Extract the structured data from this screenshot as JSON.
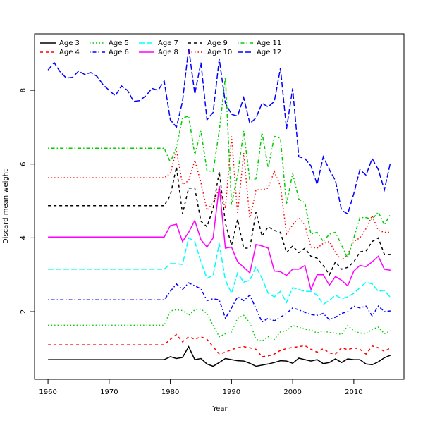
{
  "chart_data": {
    "type": "line",
    "xlabel": "Year",
    "ylabel": "Discard mean weight",
    "x": [
      1960,
      1961,
      1962,
      1963,
      1964,
      1965,
      1966,
      1967,
      1968,
      1969,
      1970,
      1971,
      1972,
      1973,
      1974,
      1975,
      1976,
      1977,
      1978,
      1979,
      1980,
      1981,
      1982,
      1983,
      1984,
      1985,
      1986,
      1987,
      1988,
      1989,
      1990,
      1991,
      1992,
      1993,
      1994,
      1995,
      1996,
      1997,
      1998,
      1999,
      2000,
      2001,
      2002,
      2003,
      2004,
      2005,
      2006,
      2007,
      2008,
      2009,
      2010,
      2011,
      2012,
      2013,
      2014,
      2015,
      2016
    ],
    "xlim": [
      1957.8,
      2018.2
    ],
    "xticks": [
      1960,
      1970,
      1980,
      1990,
      2000,
      2010
    ],
    "ylim": [
      0.166,
      9.53
    ],
    "yticks": [
      2,
      4,
      6,
      8
    ],
    "legend": "top-left",
    "series": [
      {
        "name": "Age 3",
        "color": "#000000",
        "dash": "solid",
        "values": [
          0.7,
          0.7,
          0.7,
          0.7,
          0.7,
          0.7,
          0.7,
          0.7,
          0.7,
          0.7,
          0.7,
          0.7,
          0.7,
          0.7,
          0.7,
          0.7,
          0.7,
          0.7,
          0.7,
          0.7,
          0.78,
          0.73,
          0.76,
          1.05,
          0.7,
          0.73,
          0.58,
          0.52,
          0.62,
          0.73,
          0.7,
          0.67,
          0.66,
          0.6,
          0.52,
          0.55,
          0.58,
          0.62,
          0.67,
          0.66,
          0.6,
          0.74,
          0.7,
          0.66,
          0.7,
          0.59,
          0.62,
          0.72,
          0.62,
          0.72,
          0.7,
          0.7,
          0.58,
          0.56,
          0.64,
          0.75,
          0.82
        ]
      },
      {
        "name": "Age 4",
        "color": "#ff0000",
        "dash": "dashed",
        "values": [
          1.1,
          1.1,
          1.1,
          1.1,
          1.1,
          1.1,
          1.1,
          1.1,
          1.1,
          1.1,
          1.1,
          1.1,
          1.1,
          1.1,
          1.1,
          1.1,
          1.1,
          1.1,
          1.1,
          1.1,
          1.25,
          1.38,
          1.18,
          1.32,
          1.25,
          1.32,
          1.25,
          1.05,
          0.85,
          0.9,
          0.97,
          1.02,
          1.05,
          1.02,
          0.98,
          0.78,
          0.8,
          0.85,
          0.95,
          1.0,
          1.03,
          1.05,
          1.08,
          0.98,
          0.9,
          1.0,
          0.88,
          0.85,
          1.02,
          0.97,
          1.02,
          0.98,
          0.85,
          1.07,
          1.02,
          0.92,
          1.02
        ]
      },
      {
        "name": "Age 5",
        "color": "#00cd00",
        "dash": "dotted",
        "values": [
          1.63,
          1.63,
          1.63,
          1.63,
          1.63,
          1.63,
          1.63,
          1.63,
          1.63,
          1.63,
          1.63,
          1.63,
          1.63,
          1.63,
          1.63,
          1.63,
          1.63,
          1.63,
          1.63,
          1.63,
          2.02,
          2.05,
          2.03,
          1.9,
          2.05,
          2.07,
          1.95,
          1.63,
          1.32,
          1.4,
          1.45,
          1.82,
          1.9,
          1.7,
          1.25,
          1.2,
          1.32,
          1.25,
          1.45,
          1.48,
          1.62,
          1.58,
          1.52,
          1.5,
          1.42,
          1.48,
          1.43,
          1.42,
          1.38,
          1.62,
          1.48,
          1.42,
          1.4,
          1.52,
          1.58,
          1.4,
          1.48
        ]
      },
      {
        "name": "Age 6",
        "color": "#0000ff",
        "dash": "dotdash",
        "values": [
          2.32,
          2.32,
          2.32,
          2.32,
          2.32,
          2.32,
          2.32,
          2.32,
          2.32,
          2.32,
          2.32,
          2.32,
          2.32,
          2.32,
          2.32,
          2.32,
          2.32,
          2.32,
          2.32,
          2.32,
          2.55,
          2.75,
          2.6,
          2.78,
          2.7,
          2.62,
          2.3,
          2.35,
          2.32,
          1.82,
          2.1,
          2.4,
          2.3,
          2.45,
          2.08,
          1.72,
          1.82,
          1.75,
          1.85,
          1.95,
          2.1,
          2.05,
          1.98,
          1.92,
          1.9,
          1.95,
          1.78,
          1.85,
          1.95,
          2.0,
          2.15,
          2.1,
          2.15,
          1.88,
          2.15,
          2.0,
          2.02
        ]
      },
      {
        "name": "Age 7",
        "color": "#00ffff",
        "dash": "longdash",
        "values": [
          3.15,
          3.15,
          3.15,
          3.15,
          3.15,
          3.15,
          3.15,
          3.15,
          3.15,
          3.15,
          3.15,
          3.15,
          3.15,
          3.15,
          3.15,
          3.15,
          3.15,
          3.15,
          3.15,
          3.15,
          3.3,
          3.3,
          3.28,
          4.0,
          3.9,
          3.35,
          2.9,
          2.98,
          3.85,
          2.85,
          2.5,
          3.05,
          2.8,
          2.85,
          3.22,
          2.9,
          2.5,
          2.4,
          2.55,
          2.25,
          2.65,
          2.6,
          2.55,
          2.55,
          2.45,
          2.2,
          2.3,
          2.45,
          2.35,
          2.4,
          2.5,
          2.65,
          2.8,
          2.75,
          2.55,
          2.58,
          2.38
        ]
      },
      {
        "name": "Age 8",
        "color": "#ff00ff",
        "dash": "solid",
        "values": [
          4.02,
          4.02,
          4.02,
          4.02,
          4.02,
          4.02,
          4.02,
          4.02,
          4.02,
          4.02,
          4.02,
          4.02,
          4.02,
          4.02,
          4.02,
          4.02,
          4.02,
          4.02,
          4.02,
          4.02,
          4.33,
          4.37,
          3.9,
          4.15,
          4.47,
          3.95,
          3.75,
          4.0,
          5.4,
          3.72,
          3.75,
          3.35,
          3.2,
          3.05,
          3.82,
          3.78,
          3.72,
          3.1,
          3.08,
          2.98,
          3.15,
          3.15,
          3.25,
          2.6,
          3.0,
          3.0,
          2.72,
          2.95,
          2.85,
          2.7,
          3.1,
          3.25,
          3.22,
          3.35,
          3.5,
          3.15,
          3.12
        ]
      },
      {
        "name": "Age 9",
        "color": "#000000",
        "dash": "dashed",
        "values": [
          4.87,
          4.87,
          4.87,
          4.87,
          4.87,
          4.87,
          4.87,
          4.87,
          4.87,
          4.87,
          4.87,
          4.87,
          4.87,
          4.87,
          4.87,
          4.87,
          4.87,
          4.87,
          4.87,
          4.87,
          5.15,
          5.92,
          4.65,
          5.35,
          5.35,
          4.45,
          4.3,
          4.8,
          5.8,
          4.4,
          3.8,
          4.5,
          3.72,
          3.72,
          4.7,
          4.05,
          4.3,
          4.2,
          4.15,
          3.6,
          3.78,
          3.6,
          3.72,
          3.5,
          3.45,
          3.25,
          3.0,
          3.35,
          3.15,
          3.2,
          3.35,
          3.62,
          3.65,
          3.9,
          4.0,
          3.55,
          3.55
        ]
      },
      {
        "name": "Age 10",
        "color": "#ff0000",
        "dash": "dotted",
        "values": [
          5.63,
          5.63,
          5.63,
          5.63,
          5.63,
          5.63,
          5.63,
          5.63,
          5.63,
          5.63,
          5.63,
          5.63,
          5.63,
          5.63,
          5.63,
          5.63,
          5.63,
          5.63,
          5.63,
          5.63,
          5.75,
          6.38,
          5.45,
          5.55,
          6.1,
          5.5,
          4.75,
          4.95,
          5.35,
          4.8,
          6.75,
          4.65,
          6.3,
          4.5,
          5.3,
          5.3,
          5.35,
          5.8,
          5.4,
          4.1,
          4.35,
          4.55,
          4.35,
          3.75,
          3.72,
          3.85,
          3.9,
          3.6,
          3.4,
          3.55,
          3.9,
          4.0,
          4.25,
          4.6,
          4.2,
          4.15,
          4.15
        ]
      },
      {
        "name": "Age 11",
        "color": "#00cd00",
        "dash": "dotdash",
        "values": [
          6.43,
          6.43,
          6.43,
          6.43,
          6.43,
          6.43,
          6.43,
          6.43,
          6.43,
          6.43,
          6.43,
          6.43,
          6.43,
          6.43,
          6.43,
          6.43,
          6.43,
          6.43,
          6.43,
          6.43,
          6.05,
          6.45,
          7.25,
          7.3,
          6.25,
          6.9,
          5.82,
          5.8,
          6.9,
          8.35,
          4.9,
          5.7,
          6.9,
          5.55,
          5.6,
          6.85,
          5.9,
          6.75,
          6.7,
          4.9,
          5.75,
          5.05,
          4.95,
          4.1,
          4.15,
          3.9,
          4.1,
          4.15,
          3.8,
          3.45,
          4.0,
          4.55,
          4.55,
          4.5,
          4.7,
          4.35,
          4.65
        ]
      },
      {
        "name": "Age 12",
        "color": "#0000ff",
        "dash": "longdash",
        "values": [
          8.55,
          8.75,
          8.5,
          8.33,
          8.35,
          8.52,
          8.43,
          8.48,
          8.38,
          8.15,
          8.0,
          7.85,
          8.12,
          8.0,
          7.7,
          7.72,
          7.85,
          8.05,
          8.0,
          8.25,
          7.2,
          7.0,
          7.7,
          9.15,
          7.9,
          8.75,
          7.2,
          7.4,
          8.85,
          7.65,
          7.35,
          7.3,
          7.8,
          7.1,
          7.25,
          7.65,
          7.55,
          7.7,
          8.6,
          6.95,
          8.05,
          6.2,
          6.15,
          5.95,
          5.45,
          6.2,
          5.85,
          5.55,
          4.75,
          4.65,
          5.2,
          5.85,
          5.7,
          6.15,
          5.85,
          5.3,
          6.05
        ]
      }
    ]
  }
}
